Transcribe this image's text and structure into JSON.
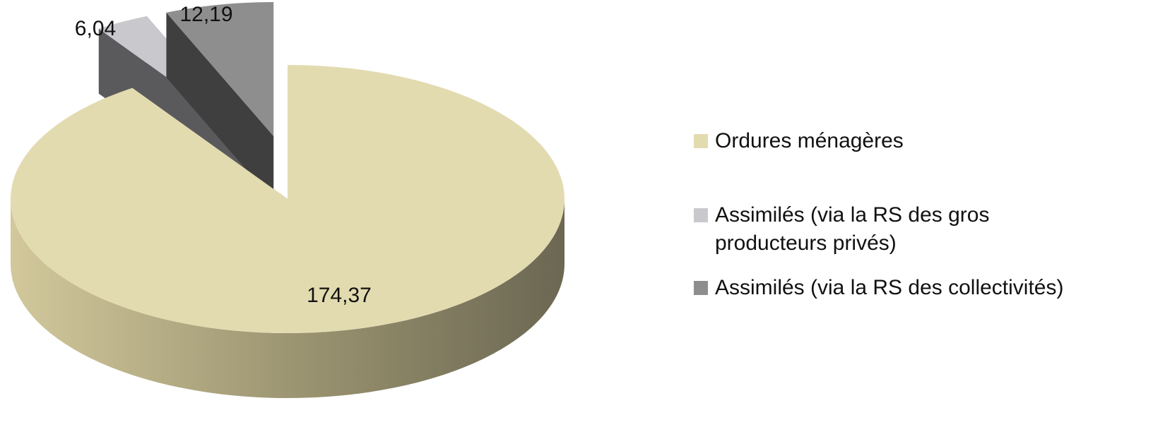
{
  "chart_data": {
    "type": "pie",
    "categories": [
      "Ordures ménagères",
      "Assimilés (via la RS des gros producteurs privés)",
      "Assimilés (via la RS des collectivités)"
    ],
    "values": [
      174.37,
      6.04,
      12.19
    ],
    "value_labels": [
      "174,37",
      "6,04",
      "12,19"
    ],
    "colors": [
      "#e3dbb0",
      "#c9c9cd",
      "#8e8e8e"
    ],
    "legend": "right"
  }
}
